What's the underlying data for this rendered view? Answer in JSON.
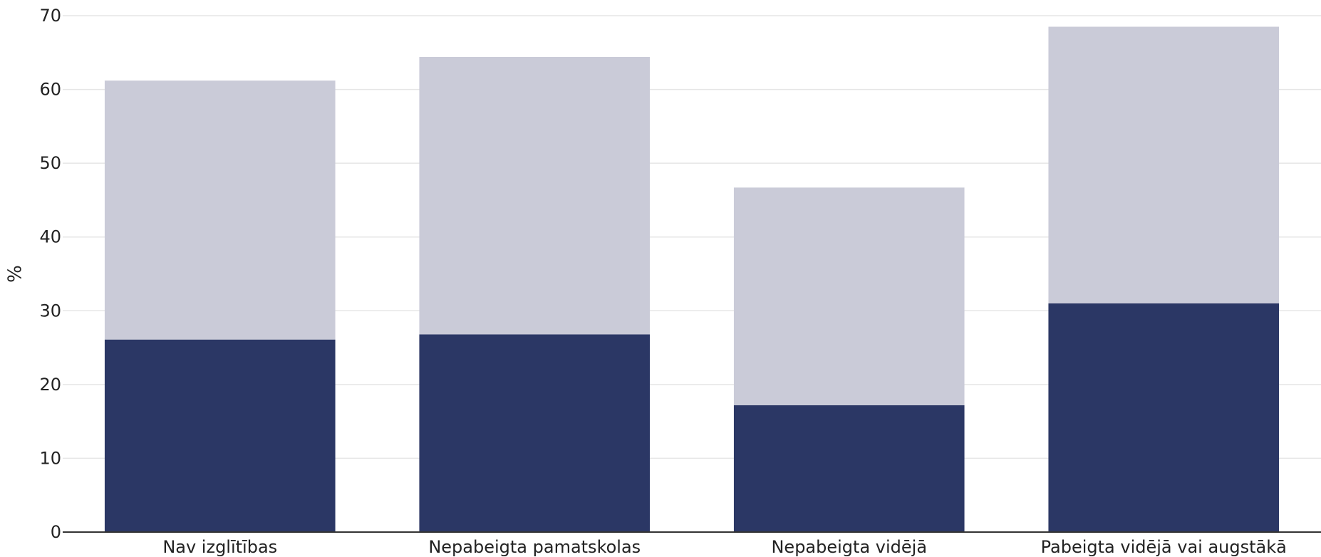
{
  "chart_data": {
    "type": "bar",
    "stacked": true,
    "categories": [
      "Nav izglītības",
      "Nepabeigta pamatskolas",
      "Nepabeigta vidējā",
      "Pabeigta vidējā vai augstākā"
    ],
    "series": [
      {
        "values": [
          26.1,
          26.8,
          17.2,
          31.0
        ],
        "color": "#2b3765"
      },
      {
        "values": [
          35.1,
          37.6,
          29.5,
          37.5
        ],
        "color": "#cacbd8"
      }
    ],
    "xlabel": "",
    "ylabel": "%",
    "ylim": [
      0,
      70
    ],
    "yticks": [
      0,
      10,
      20,
      30,
      40,
      50,
      60,
      70
    ],
    "grid": true,
    "legend": "none"
  },
  "colors": {
    "grid": "#e6e6e6",
    "axis": "#333333",
    "text": "#222222"
  }
}
